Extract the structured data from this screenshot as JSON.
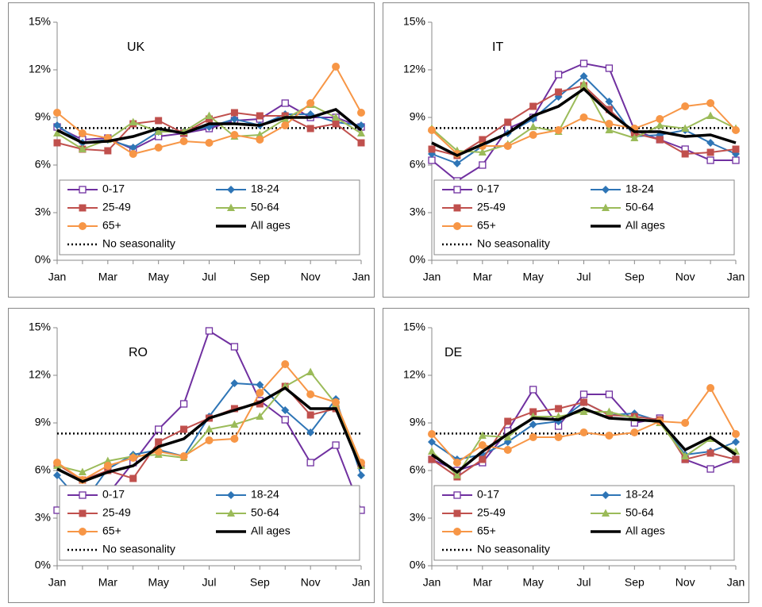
{
  "chart_data": [
    {
      "type": "line",
      "title": "UK",
      "categories": [
        "Jan",
        null,
        "Mar",
        null,
        "May",
        null,
        "Jul",
        null,
        "Sep",
        null,
        "Nov",
        null,
        "Jan"
      ],
      "ylim": [
        0,
        15
      ],
      "yticks": [
        {
          "value": 0,
          "label": "0%"
        },
        {
          "value": 3,
          "label": "3%"
        },
        {
          "value": 6,
          "label": "6%"
        },
        {
          "value": 9,
          "label": "9%"
        },
        {
          "value": 12,
          "label": "12%"
        },
        {
          "value": 15,
          "label": "15%"
        }
      ],
      "legend": "lower center",
      "series": [
        {
          "name": "0-17",
          "color": "#7030a0",
          "marker": "square-open",
          "line": "solid",
          "values": [
            8.4,
            7.6,
            7.7,
            7.0,
            7.8,
            8.0,
            8.3,
            8.8,
            8.9,
            9.9,
            9.0,
            9.0,
            8.4
          ]
        },
        {
          "name": "18-24",
          "color": "#2e75b6",
          "marker": "diamond",
          "line": "solid",
          "values": [
            8.5,
            7.4,
            7.6,
            7.1,
            8.1,
            8.1,
            8.4,
            8.9,
            8.5,
            9.2,
            9.2,
            8.7,
            8.5
          ]
        },
        {
          "name": "25-49",
          "color": "#c0504d",
          "marker": "square",
          "line": "solid",
          "values": [
            7.4,
            7.0,
            6.9,
            8.6,
            8.8,
            8.0,
            8.9,
            9.3,
            9.1,
            9.1,
            8.3,
            8.6,
            7.4
          ]
        },
        {
          "name": "50-64",
          "color": "#9bbb59",
          "marker": "triangle",
          "line": "solid",
          "values": [
            8.0,
            7.0,
            7.6,
            8.7,
            8.1,
            8.1,
            9.1,
            7.8,
            7.9,
            8.9,
            9.8,
            9.0,
            8.0
          ]
        },
        {
          "name": "65+",
          "color": "#f79646",
          "marker": "circle",
          "line": "solid",
          "values": [
            9.3,
            8.0,
            7.7,
            6.7,
            7.1,
            7.5,
            7.4,
            7.9,
            7.6,
            8.5,
            9.9,
            12.2,
            9.3
          ]
        },
        {
          "name": "All ages",
          "color": "#000000",
          "marker": "none",
          "line": "thick",
          "values": [
            8.2,
            7.4,
            7.5,
            7.8,
            8.3,
            8.0,
            8.6,
            8.6,
            8.5,
            9.0,
            9.0,
            9.5,
            8.2
          ]
        },
        {
          "name": "No seasonality",
          "color": "#000000",
          "marker": "none",
          "line": "dotted",
          "values": [
            8.33,
            8.33,
            8.33,
            8.33,
            8.33,
            8.33,
            8.33,
            8.33,
            8.33,
            8.33,
            8.33,
            8.33,
            8.33
          ]
        }
      ]
    },
    {
      "type": "line",
      "title": "IT",
      "categories": [
        "Jan",
        null,
        "Mar",
        null,
        "May",
        null,
        "Jul",
        null,
        "Sep",
        null,
        "Nov",
        null,
        "Jan"
      ],
      "ylim": [
        0,
        15
      ],
      "yticks": [
        {
          "value": 0,
          "label": "0%"
        },
        {
          "value": 3,
          "label": "3%"
        },
        {
          "value": 6,
          "label": "6%"
        },
        {
          "value": 9,
          "label": "9%"
        },
        {
          "value": 12,
          "label": "12%"
        },
        {
          "value": 15,
          "label": "15%"
        }
      ],
      "legend": "lower center",
      "series": [
        {
          "name": "0-17",
          "color": "#7030a0",
          "marker": "square-open",
          "line": "solid",
          "values": [
            6.3,
            5.0,
            6.0,
            8.3,
            9.0,
            11.7,
            12.4,
            12.1,
            8.2,
            7.6,
            7.0,
            6.3,
            6.3
          ]
        },
        {
          "name": "18-24",
          "color": "#2e75b6",
          "marker": "diamond",
          "line": "solid",
          "values": [
            6.7,
            6.1,
            7.2,
            8.0,
            8.9,
            10.3,
            11.6,
            10.0,
            7.8,
            7.9,
            8.2,
            7.4,
            6.7
          ]
        },
        {
          "name": "25-49",
          "color": "#c0504d",
          "marker": "square",
          "line": "solid",
          "values": [
            7.0,
            6.6,
            7.6,
            8.7,
            9.7,
            10.6,
            11.0,
            9.5,
            8.0,
            7.6,
            6.7,
            6.8,
            7.0
          ]
        },
        {
          "name": "50-64",
          "color": "#9bbb59",
          "marker": "triangle",
          "line": "solid",
          "values": [
            8.3,
            6.9,
            6.8,
            7.3,
            8.4,
            8.1,
            11.1,
            8.2,
            7.7,
            8.5,
            8.3,
            9.1,
            8.3
          ]
        },
        {
          "name": "65+",
          "color": "#f79646",
          "marker": "circle",
          "line": "solid",
          "values": [
            8.2,
            6.7,
            7.2,
            7.2,
            7.9,
            8.2,
            9.0,
            8.6,
            8.3,
            8.9,
            9.7,
            9.9,
            8.2
          ]
        },
        {
          "name": "All ages",
          "color": "#000000",
          "marker": "none",
          "line": "thick",
          "values": [
            7.4,
            6.6,
            7.3,
            8.0,
            9.1,
            9.7,
            10.8,
            9.3,
            8.1,
            8.1,
            7.8,
            7.9,
            7.4
          ]
        },
        {
          "name": "No seasonality",
          "color": "#000000",
          "marker": "none",
          "line": "dotted",
          "values": [
            8.33,
            8.33,
            8.33,
            8.33,
            8.33,
            8.33,
            8.33,
            8.33,
            8.33,
            8.33,
            8.33,
            8.33,
            8.33
          ]
        }
      ]
    },
    {
      "type": "line",
      "title": "RO",
      "categories": [
        "Jan",
        null,
        "Mar",
        null,
        "May",
        null,
        "Jul",
        null,
        "Sep",
        null,
        "Nov",
        null,
        "Jan"
      ],
      "ylim": [
        0,
        15
      ],
      "yticks": [
        {
          "value": 0,
          "label": "0%"
        },
        {
          "value": 3,
          "label": "3%"
        },
        {
          "value": 6,
          "label": "6%"
        },
        {
          "value": 9,
          "label": "9%"
        },
        {
          "value": 12,
          "label": "12%"
        },
        {
          "value": 15,
          "label": "15%"
        }
      ],
      "legend": "lower center",
      "series": [
        {
          "name": "0-17",
          "color": "#7030a0",
          "marker": "square-open",
          "line": "solid",
          "values": [
            3.5,
            4.4,
            4.5,
            6.5,
            8.6,
            10.2,
            14.8,
            13.8,
            10.4,
            9.2,
            6.5,
            7.6,
            3.5
          ]
        },
        {
          "name": "18-24",
          "color": "#2e75b6",
          "marker": "diamond",
          "line": "solid",
          "values": [
            5.7,
            3.9,
            6.1,
            7.0,
            7.3,
            6.9,
            9.4,
            11.5,
            11.4,
            9.8,
            8.4,
            10.5,
            5.7
          ]
        },
        {
          "name": "25-49",
          "color": "#c0504d",
          "marker": "square",
          "line": "solid",
          "values": [
            6.4,
            5.4,
            6.0,
            5.5,
            7.8,
            8.6,
            9.3,
            9.9,
            10.2,
            11.3,
            9.5,
            9.9,
            6.4
          ]
        },
        {
          "name": "50-64",
          "color": "#9bbb59",
          "marker": "triangle",
          "line": "solid",
          "values": [
            6.3,
            5.9,
            6.6,
            6.9,
            7.0,
            6.8,
            8.6,
            8.9,
            9.4,
            11.3,
            12.2,
            10.2,
            6.3
          ]
        },
        {
          "name": "65+",
          "color": "#f79646",
          "marker": "circle",
          "line": "solid",
          "values": [
            6.5,
            5.4,
            6.3,
            6.8,
            7.2,
            6.9,
            7.9,
            8.0,
            10.9,
            12.7,
            10.8,
            10.3,
            6.5
          ]
        },
        {
          "name": "All ages",
          "color": "#000000",
          "marker": "none",
          "line": "thick",
          "values": [
            6.1,
            5.3,
            5.9,
            6.3,
            7.5,
            8.0,
            9.3,
            9.8,
            10.3,
            11.2,
            9.9,
            9.9,
            6.1
          ]
        },
        {
          "name": "No seasonality",
          "color": "#000000",
          "marker": "none",
          "line": "dotted",
          "values": [
            8.33,
            8.33,
            8.33,
            8.33,
            8.33,
            8.33,
            8.33,
            8.33,
            8.33,
            8.33,
            8.33,
            8.33,
            8.33
          ]
        }
      ]
    },
    {
      "type": "line",
      "title": "DE",
      "categories": [
        "Jan",
        null,
        "Mar",
        null,
        "May",
        null,
        "Jul",
        null,
        "Sep",
        null,
        "Nov",
        null,
        "Jan"
      ],
      "ylim": [
        0,
        15
      ],
      "yticks": [
        {
          "value": 0,
          "label": "0%"
        },
        {
          "value": 3,
          "label": "3%"
        },
        {
          "value": 6,
          "label": "6%"
        },
        {
          "value": 9,
          "label": "9%"
        },
        {
          "value": 12,
          "label": "12%"
        },
        {
          "value": 15,
          "label": "15%"
        }
      ],
      "legend": "lower center",
      "series": [
        {
          "name": "0-17",
          "color": "#7030a0",
          "marker": "square-open",
          "line": "solid",
          "values": [
            6.7,
            6.0,
            6.5,
            8.5,
            11.1,
            8.8,
            10.8,
            10.8,
            9.0,
            9.3,
            6.7,
            6.1,
            6.7
          ]
        },
        {
          "name": "18-24",
          "color": "#2e75b6",
          "marker": "diamond",
          "line": "solid",
          "values": [
            7.8,
            6.7,
            7.0,
            7.8,
            8.9,
            9.1,
            10.3,
            9.5,
            9.6,
            9.1,
            7.0,
            7.2,
            7.8
          ]
        },
        {
          "name": "25-49",
          "color": "#c0504d",
          "marker": "square",
          "line": "solid",
          "values": [
            6.7,
            5.6,
            6.7,
            9.1,
            9.7,
            9.9,
            10.3,
            9.5,
            9.4,
            9.2,
            6.7,
            7.1,
            6.7
          ]
        },
        {
          "name": "50-64",
          "color": "#9bbb59",
          "marker": "triangle",
          "line": "solid",
          "values": [
            7.2,
            5.7,
            8.2,
            8.1,
            9.4,
            9.4,
            9.7,
            9.7,
            9.3,
            9.0,
            6.9,
            8.0,
            7.2
          ]
        },
        {
          "name": "65+",
          "color": "#f79646",
          "marker": "circle",
          "line": "solid",
          "values": [
            8.3,
            6.5,
            7.6,
            7.3,
            8.1,
            8.1,
            8.4,
            8.2,
            8.4,
            9.1,
            9.0,
            11.2,
            8.3
          ]
        },
        {
          "name": "All ages",
          "color": "#000000",
          "marker": "none",
          "line": "thick",
          "values": [
            7.0,
            5.9,
            7.2,
            8.3,
            9.3,
            9.2,
            9.9,
            9.3,
            9.2,
            9.1,
            7.3,
            8.1,
            7.0
          ]
        },
        {
          "name": "No seasonality",
          "color": "#000000",
          "marker": "none",
          "line": "dotted",
          "values": [
            8.33,
            8.33,
            8.33,
            8.33,
            8.33,
            8.33,
            8.33,
            8.33,
            8.33,
            8.33,
            8.33,
            8.33,
            8.33
          ]
        }
      ]
    }
  ]
}
